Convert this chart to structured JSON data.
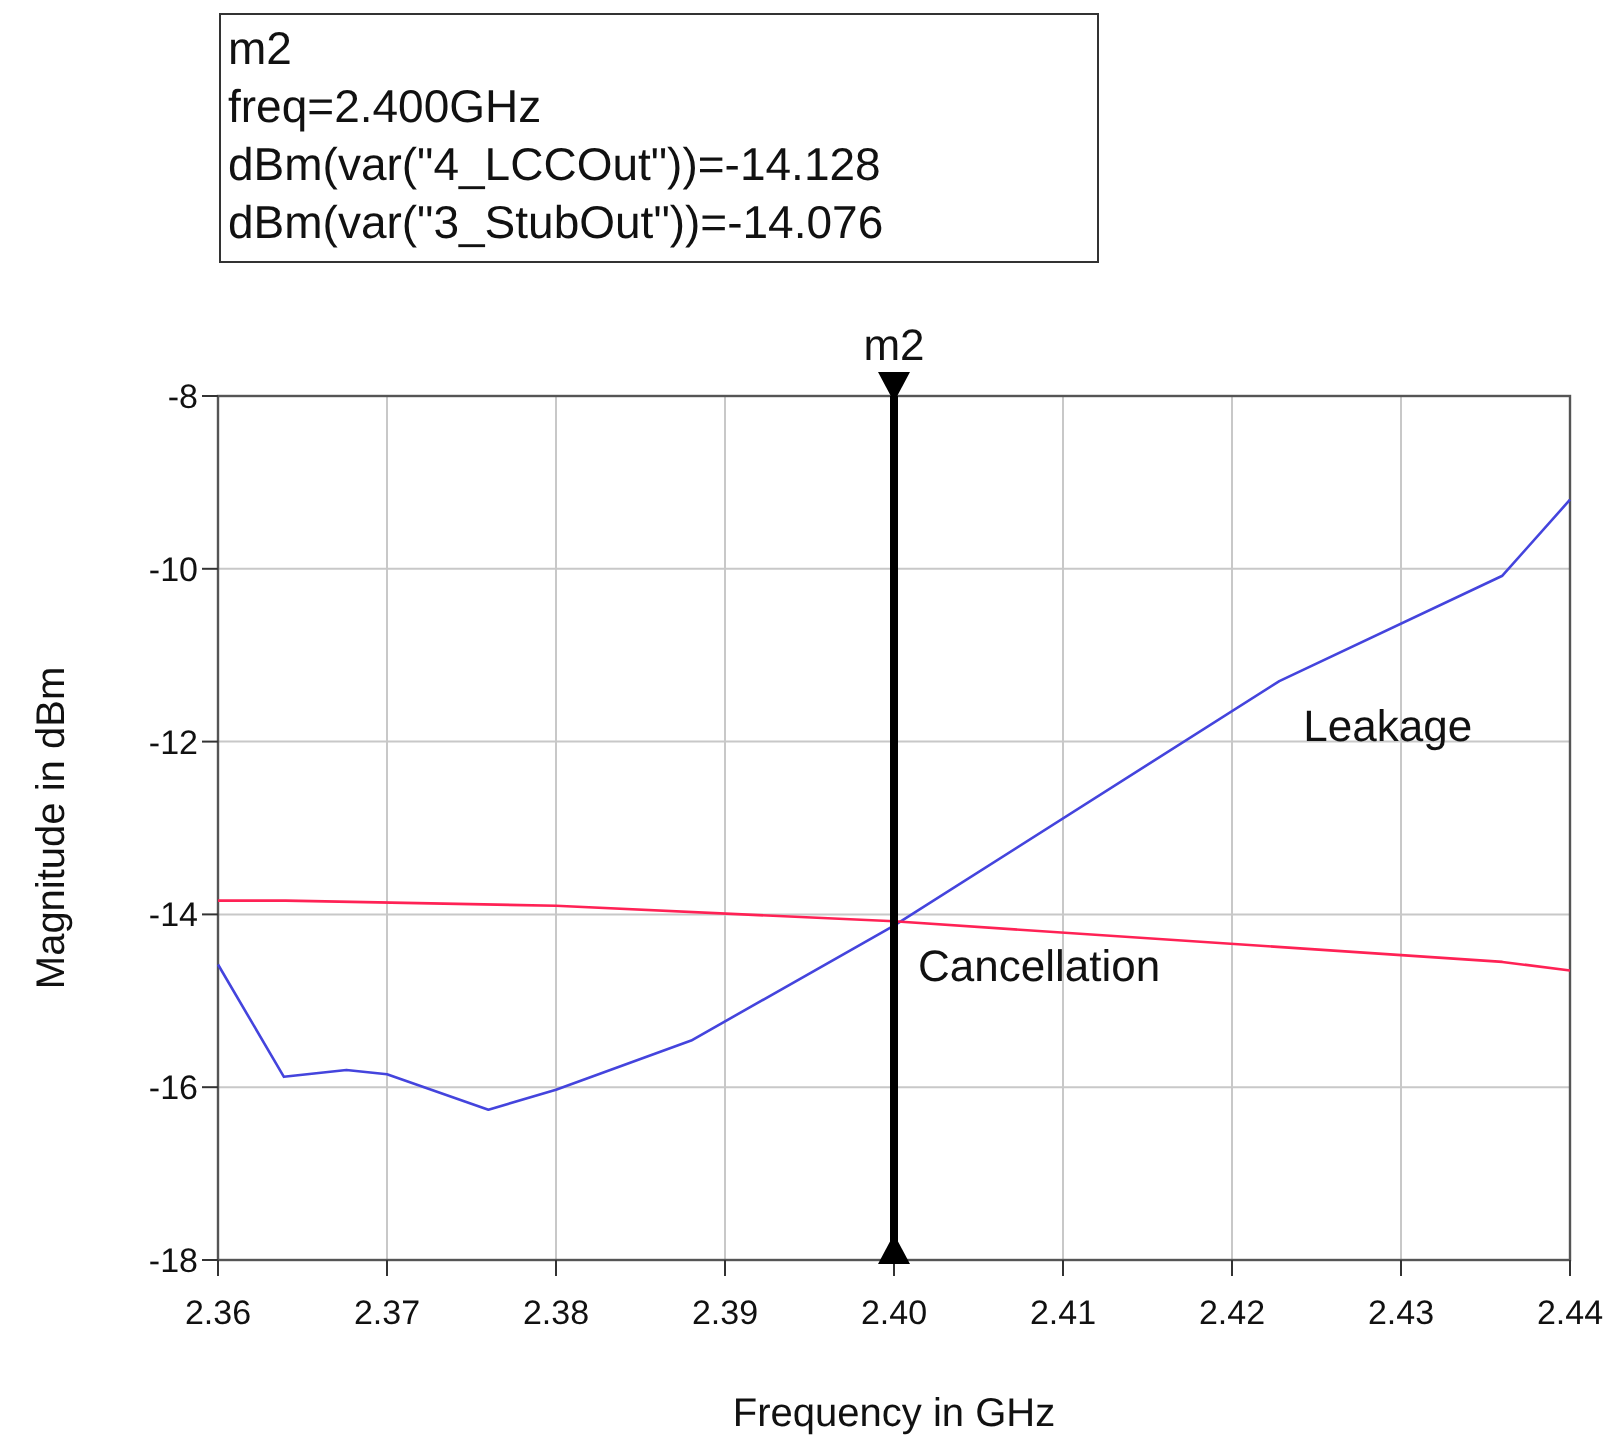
{
  "chart_data": {
    "type": "line",
    "xlabel": "Frequency in GHz",
    "ylabel": "Magnitude in dBm",
    "annotations": [
      "m2",
      "freq=2.400GHz",
      "dBm(var(\"4_LCCOut\"))=-14.128",
      "dBm(var(\"3_StubOut\"))=-14.076"
    ],
    "xlim": [
      2.36,
      2.44
    ],
    "ylim": [
      -18,
      -8
    ],
    "xticks": [
      {
        "value": 2.36,
        "label": "2.36"
      },
      {
        "value": 2.37,
        "label": "2.37"
      },
      {
        "value": 2.38,
        "label": "2.38"
      },
      {
        "value": 2.39,
        "label": "2.39"
      },
      {
        "value": 2.4,
        "label": "2.40"
      },
      {
        "value": 2.41,
        "label": "2.41"
      },
      {
        "value": 2.42,
        "label": "2.42"
      },
      {
        "value": 2.43,
        "label": "2.43"
      },
      {
        "value": 2.44,
        "label": "2.44"
      }
    ],
    "yticks": [
      -18,
      -16,
      -14,
      -12,
      -10,
      -8
    ],
    "grid": true,
    "legend": false,
    "ref_lines": [
      {
        "axis": "x",
        "value": 2.4,
        "label": "m2",
        "color": "#000000"
      }
    ],
    "series": [
      {
        "name": "Leakage",
        "color": "#4444dd",
        "x": [
          2.36,
          2.3639,
          2.3676,
          2.37,
          2.376,
          2.38,
          2.388,
          2.4,
          2.4228,
          2.436,
          2.44
        ],
        "values": [
          -14.58,
          -15.88,
          -15.8,
          -15.85,
          -16.26,
          -16.03,
          -15.46,
          -14.13,
          -11.3,
          -10.08,
          -9.2
        ]
      },
      {
        "name": "Cancellation",
        "color": "#ff2255",
        "x": [
          2.36,
          2.364,
          2.38,
          2.4,
          2.436,
          2.44
        ],
        "values": [
          -13.84,
          -13.84,
          -13.9,
          -14.08,
          -14.55,
          -14.65
        ]
      }
    ]
  }
}
